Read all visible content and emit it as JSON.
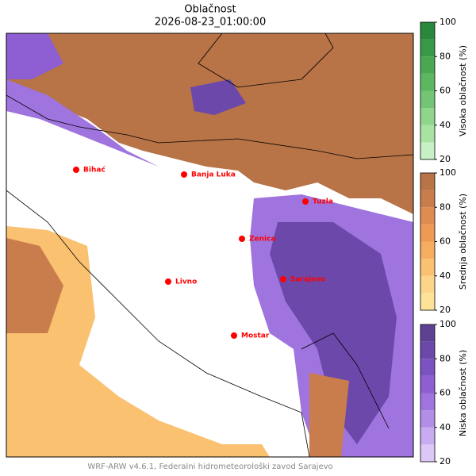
{
  "title": "Oblačnost",
  "subtitle": "2026-08-23_01:00:00",
  "cities": [
    "Bihać",
    "Banja Luka",
    "Tuzla",
    "Zenica",
    "Sarajevo",
    "Livno",
    "Mostar"
  ],
  "colorbars": [
    {
      "label": "Visoka oblačnost (%)",
      "lim": [
        20,
        100
      ],
      "ticks": [
        20,
        40,
        60,
        80,
        100
      ],
      "levels": [
        20,
        30,
        40,
        50,
        60,
        70,
        80,
        90,
        100
      ],
      "colors": [
        "#c7f0c4",
        "#a8e3a1",
        "#8fd68b",
        "#74c476",
        "#5cb860",
        "#4aa853",
        "#389848",
        "#2a883c"
      ]
    },
    {
      "label": "Srednja oblačnost (%)",
      "lim": [
        20,
        100
      ],
      "ticks": [
        20,
        40,
        60,
        80,
        100
      ],
      "levels": [
        20,
        30,
        40,
        50,
        60,
        70,
        80,
        90,
        100
      ],
      "colors": [
        "#fde39a",
        "#fcd58a",
        "#fac170",
        "#f6ad5f",
        "#ee9a55",
        "#e08c50",
        "#c97c4c",
        "#b87346"
      ]
    },
    {
      "label": "Niska oblačnost (%)",
      "lim": [
        20,
        100
      ],
      "ticks": [
        20,
        40,
        60,
        80,
        100
      ],
      "levels": [
        20,
        30,
        40,
        50,
        60,
        70,
        80,
        90,
        100
      ],
      "colors": [
        "#dcc7f7",
        "#c8abf0",
        "#b38ee7",
        "#9f74de",
        "#8d5fd3",
        "#7c51c2",
        "#6c48ab",
        "#5f4193"
      ]
    }
  ],
  "footer": "WRF-ARW v4.6.1, Federalni hidrometeorološki zavod Sarajevo"
}
